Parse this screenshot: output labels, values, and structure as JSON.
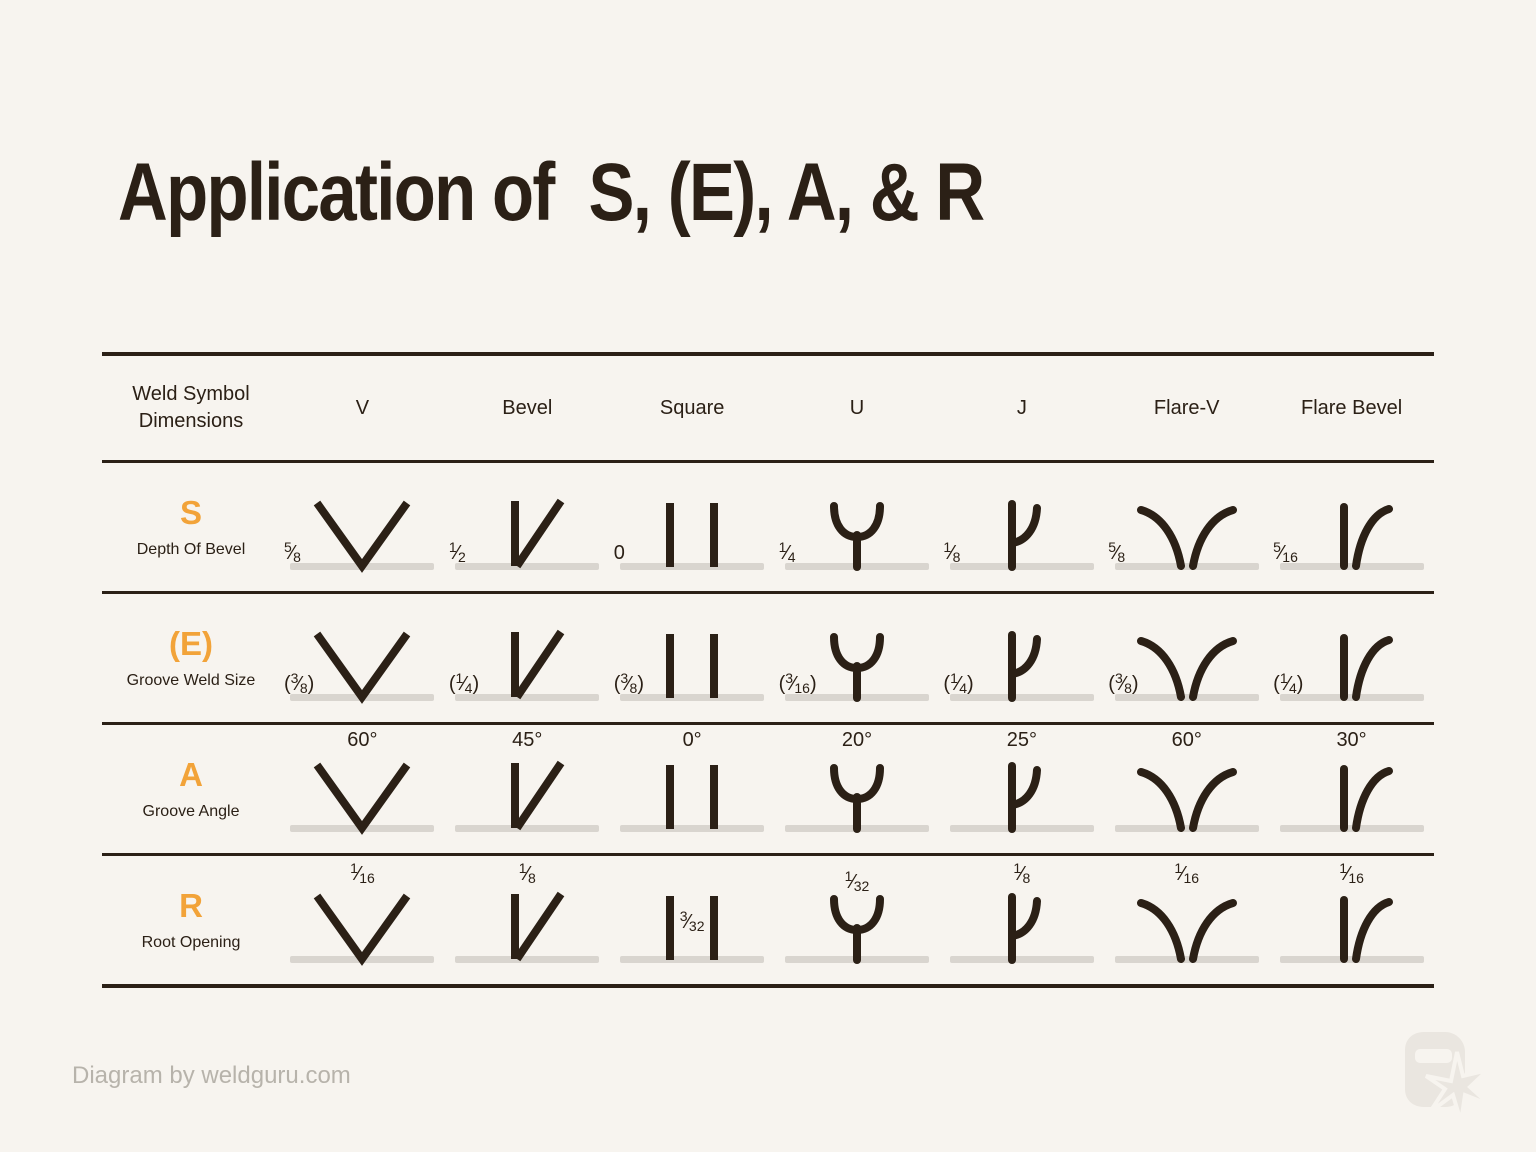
{
  "title": "Application of  S, (E), A, & R",
  "colors": {
    "background": "#F7F4EF",
    "ink": "#2B2016",
    "accent_orange": "#F2A339",
    "baseline_gray": "#D9D5CF",
    "credit_gray": "#B7B3AB",
    "watermark_gray": "#EAE6E0"
  },
  "table": {
    "header": {
      "dimensions_label": "Weld Symbol Dimensions",
      "columns": [
        "V",
        "Bevel",
        "Square",
        "U",
        "J",
        "Flare-V",
        "Flare Bevel"
      ]
    },
    "symbols": [
      "v",
      "bevel",
      "square",
      "u",
      "j",
      "flare-v",
      "flare-bevel"
    ],
    "rows": [
      {
        "key": "S",
        "label": "S",
        "description": "Depth Of Bevel",
        "values": [
          "5/8",
          "1/2",
          "0",
          "1/4",
          "1/8",
          "5/8",
          "5/16"
        ],
        "value_positions": [
          "left",
          "left",
          "left",
          "left",
          "left",
          "left",
          "left"
        ]
      },
      {
        "key": "E",
        "label": "(E)",
        "description": "Groove Weld Size",
        "values": [
          "(3/8)",
          "(1/4)",
          "(3/8)",
          "(3/16)",
          "(1/4)",
          "(3/8)",
          "(1/4)"
        ],
        "value_positions": [
          "left",
          "left",
          "left",
          "left",
          "left",
          "left",
          "left"
        ]
      },
      {
        "key": "A",
        "label": "A",
        "description": "Groove Angle",
        "values": [
          "60°",
          "45°",
          "0°",
          "20°",
          "25°",
          "60°",
          "30°"
        ],
        "value_positions": [
          "top",
          "top",
          "top",
          "top",
          "top",
          "top",
          "top"
        ]
      },
      {
        "key": "R",
        "label": "R",
        "description": "Root Opening",
        "values": [
          "1/16",
          "1/8",
          "3/32",
          "1/32",
          "1/8",
          "1/16",
          "1/16"
        ],
        "value_positions": [
          "top",
          "top",
          "mid",
          "nest",
          "top",
          "top",
          "top"
        ]
      }
    ]
  },
  "footer": {
    "credit": "Diagram by weldguru.com",
    "logo_icon": "welding-helmet-spark"
  }
}
